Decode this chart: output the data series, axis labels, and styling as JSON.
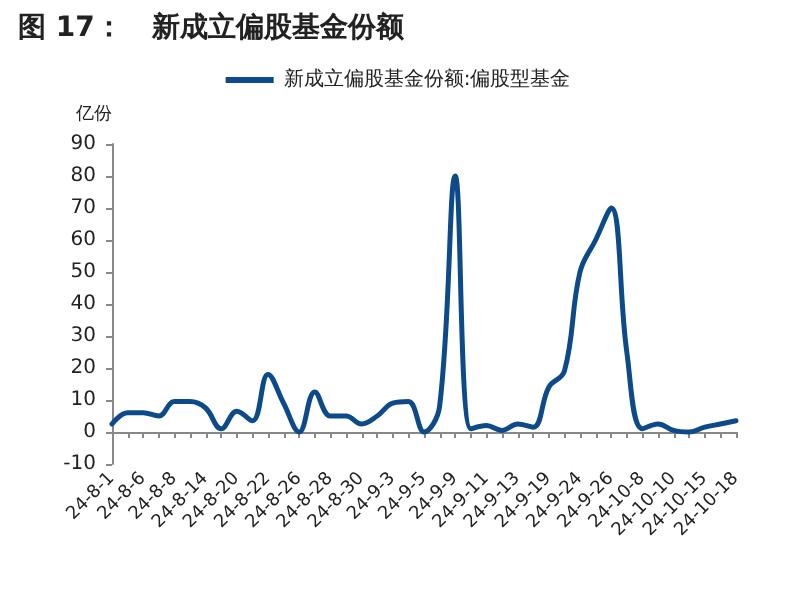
{
  "chart_data": {
    "type": "line",
    "title": "图 17：   新成立偏股基金份额",
    "ylabel": "亿份",
    "categories": [
      "24-8-1",
      null,
      "24-8-6",
      null,
      "24-8-8",
      null,
      "24-8-14",
      null,
      "24-8-20",
      null,
      "24-8-22",
      null,
      "24-8-26",
      null,
      "24-8-28",
      null,
      "24-8-30",
      null,
      "24-9-3",
      null,
      "24-9-5",
      null,
      "24-9-9",
      null,
      "24-9-11",
      null,
      "24-9-13",
      null,
      "24-9-19",
      null,
      "24-9-24",
      null,
      "24-9-26",
      null,
      "24-10-8",
      null,
      "24-10-10",
      null,
      "24-10-15",
      null,
      "24-10-18"
    ],
    "series": [
      {
        "name": "新成立偏股基金份额:偏股型基金",
        "color": "#0d4a8a",
        "values": [
          2.5,
          6,
          6,
          5,
          9.5,
          9.5,
          7.5,
          1,
          6.5,
          3.5,
          18,
          9,
          0,
          12.5,
          5,
          5,
          2.5,
          5,
          9,
          9.5,
          0,
          8,
          80,
          1,
          2,
          0.5,
          2.5,
          1.5,
          14,
          19,
          50,
          60,
          70,
          25,
          1,
          2.5,
          0.5,
          0,
          1.5,
          2.5,
          3.5
        ]
      }
    ],
    "ylim": [
      -10,
      90
    ],
    "yticks": [
      -10,
      0,
      10,
      20,
      30,
      40,
      50,
      60,
      70,
      80,
      90
    ],
    "grid": false,
    "legend": "top",
    "marker": "none",
    "line_style": "solid"
  }
}
